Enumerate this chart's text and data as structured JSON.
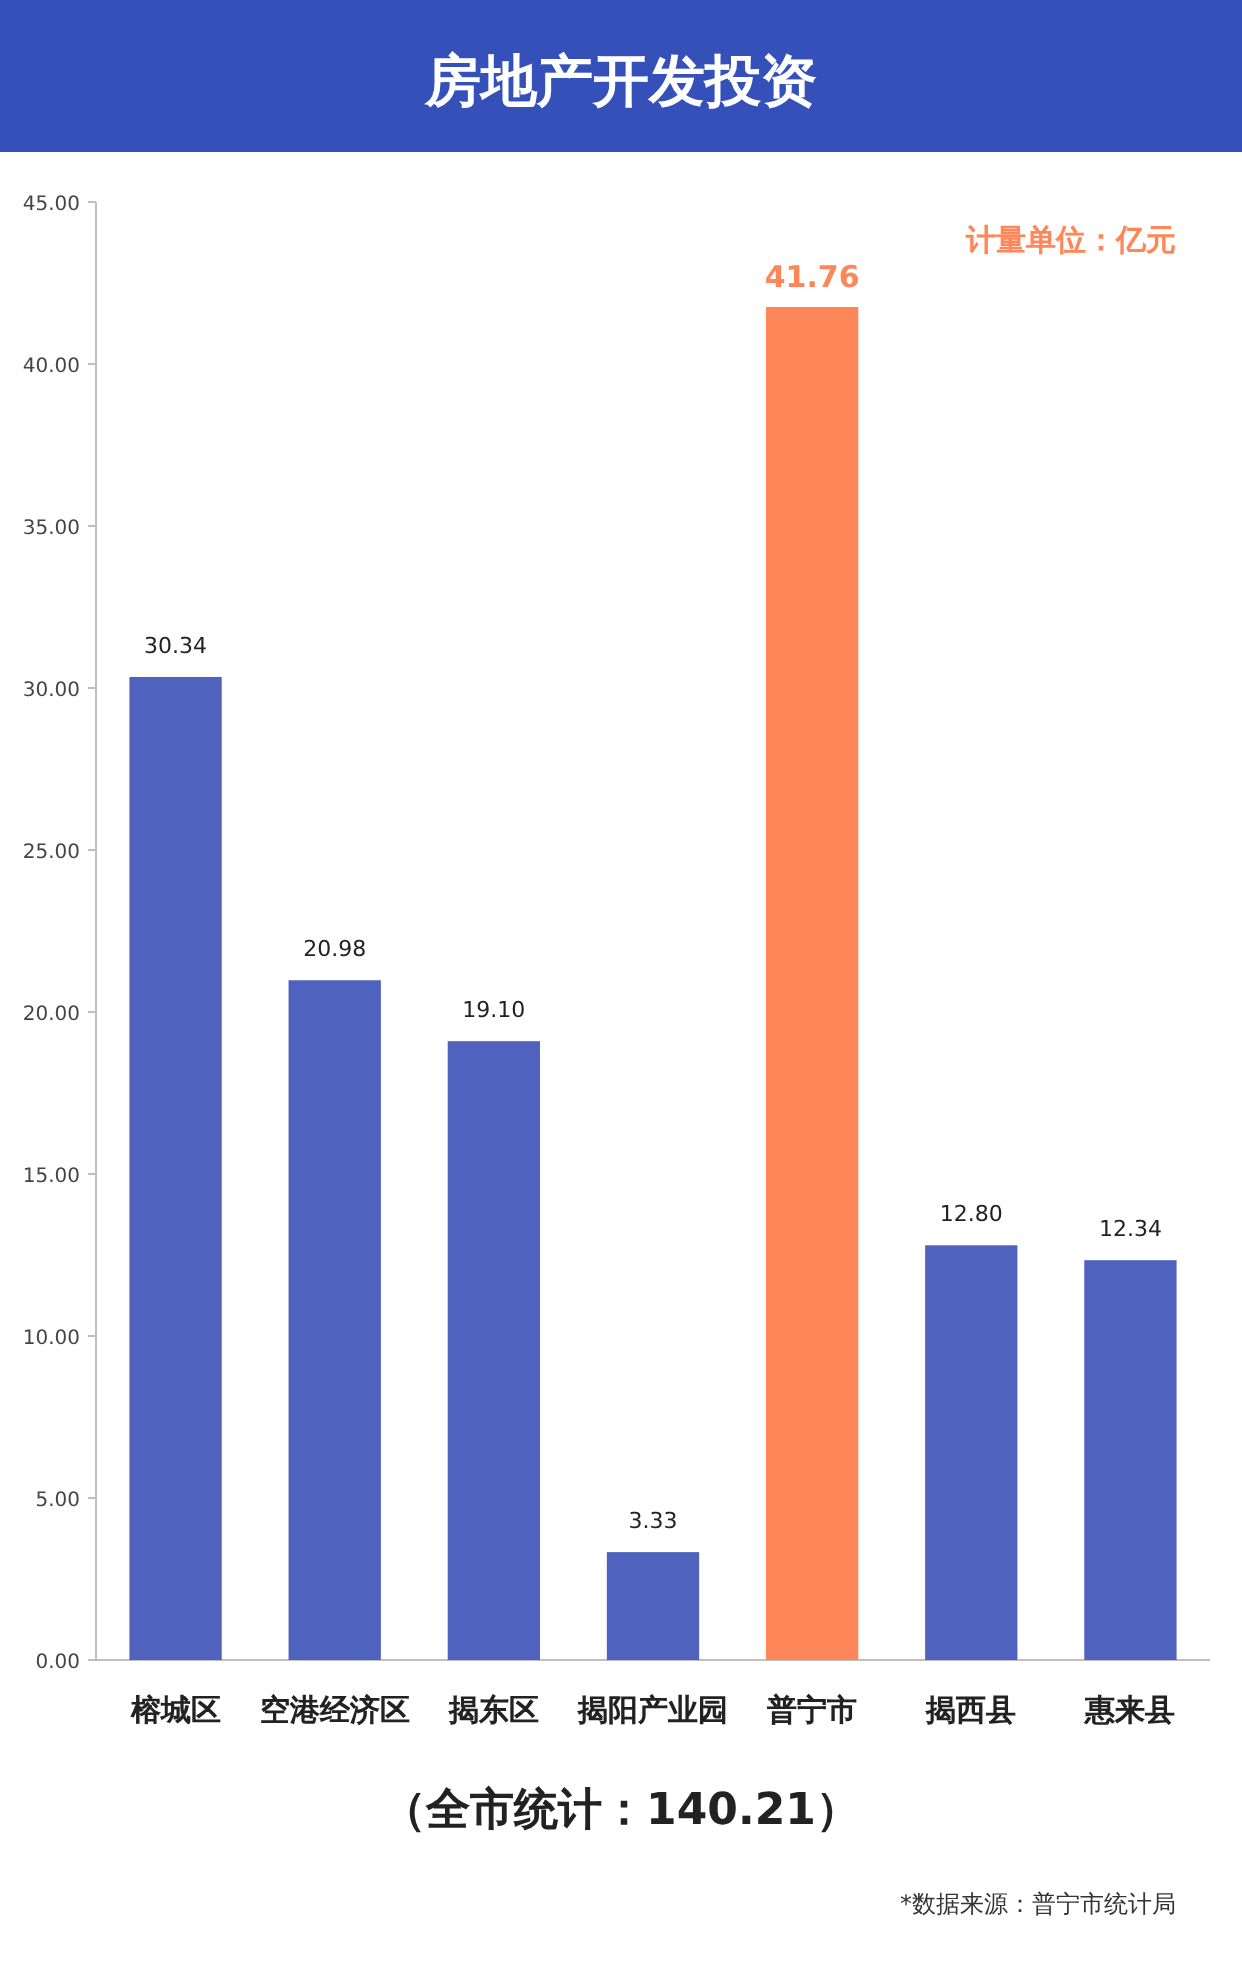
{
  "chart_data": {
    "type": "bar",
    "title": "房地产开发投资",
    "categories": [
      "榕城区",
      "空港经济区",
      "揭东区",
      "揭阳产业园",
      "普宁市",
      "揭西县",
      "惠来县"
    ],
    "values": [
      30.34,
      20.98,
      19.1,
      3.33,
      41.76,
      12.8,
      12.34
    ],
    "colors": [
      "#4f63be",
      "#4f63be",
      "#4f63be",
      "#4f63be",
      "#ff8658",
      "#4f63be",
      "#4f63be"
    ],
    "value_labels": [
      "30.34",
      "20.98",
      "19.10",
      "3.33",
      "41.76",
      "12.80",
      "12.34"
    ],
    "ylim": [
      0,
      45
    ],
    "yticks": [
      {
        "value": 0,
        "label": "0.00"
      },
      {
        "value": 5,
        "label": "5.00"
      },
      {
        "value": 10,
        "label": "10.00"
      },
      {
        "value": 15,
        "label": "15.00"
      },
      {
        "value": 20,
        "label": "20.00"
      },
      {
        "value": 25,
        "label": "25.00"
      },
      {
        "value": 30,
        "label": "30.00"
      },
      {
        "value": 35,
        "label": "35.00"
      },
      {
        "value": 40,
        "label": "40.00"
      },
      {
        "value": 45,
        "label": "45.00"
      }
    ],
    "grid": false,
    "annotations": [
      "计量单位：亿元",
      "（全市统计：140.21）",
      "*数据来源：普宁市统计局"
    ]
  }
}
